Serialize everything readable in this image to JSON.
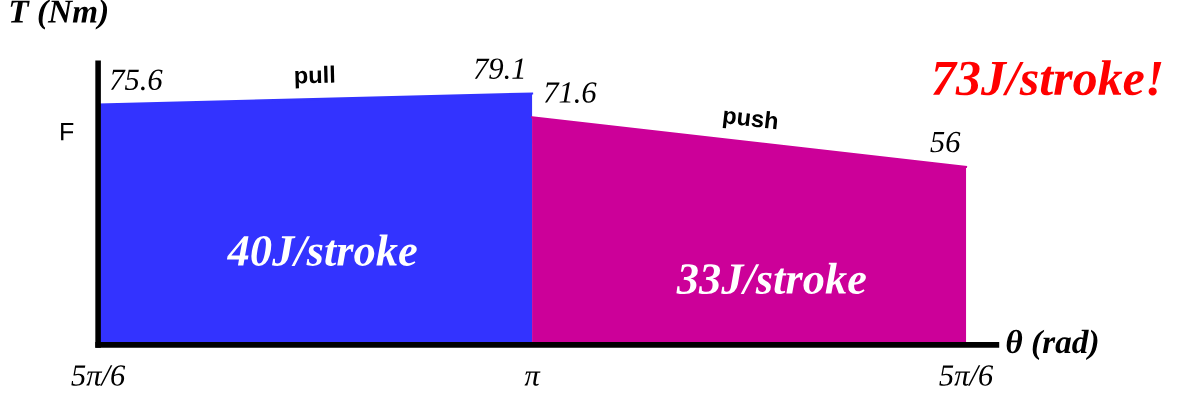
{
  "chart_data": {
    "type": "area",
    "xlabel": "θ (rad)",
    "ylabel": "T (Nm)",
    "categories": [
      "5π/6",
      "π",
      "5π/6"
    ],
    "series": [
      {
        "name": "pull",
        "color": "#3333ff",
        "values": [
          75.6,
          79.1,
          null
        ]
      },
      {
        "name": "push",
        "color": "#cc0099",
        "values": [
          null,
          71.6,
          56
        ]
      }
    ],
    "data_labels": true,
    "tick_labels": "x",
    "annotations": [
      "F",
      "40J/stroke",
      "33J/stroke",
      "73J/stroke!"
    ]
  }
}
